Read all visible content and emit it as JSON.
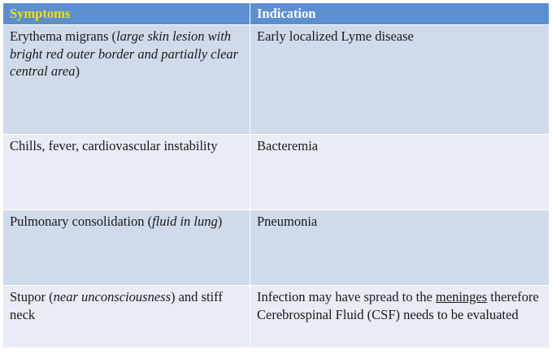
{
  "table": {
    "headers": {
      "symptoms": "Symptoms",
      "indication": "Indication"
    },
    "rows": [
      {
        "symptom_main": "Erythema migrans (",
        "symptom_italic": "large skin lesion with bright red outer border and partially clear central area",
        "symptom_tail": ")",
        "indication_text": "Early localized Lyme disease"
      },
      {
        "symptom_main": "Chills, fever, cardiovascular instability",
        "indication_text": "Bacteremia"
      },
      {
        "symptom_main": "Pulmonary consolidation (",
        "symptom_italic": "fluid in lung",
        "symptom_tail": ")",
        "indication_text": "Pneumonia"
      },
      {
        "symptom_main": "Stupor (",
        "symptom_italic": "near unconsciousness",
        "symptom_tail": ") and stiff neck",
        "indication_pre": "Infection may have spread to the ",
        "indication_underlined": "meninges",
        "indication_post": " therefore Cerebrospinal Fluid (CSF) needs to be evaluated"
      }
    ]
  },
  "colors": {
    "header_bg": "#5b8fd0",
    "header_symptoms_text": "#f0e000",
    "header_indication_text": "#ffffff",
    "row_dark": "#cfdaea",
    "row_light": "#e7ecf5"
  }
}
